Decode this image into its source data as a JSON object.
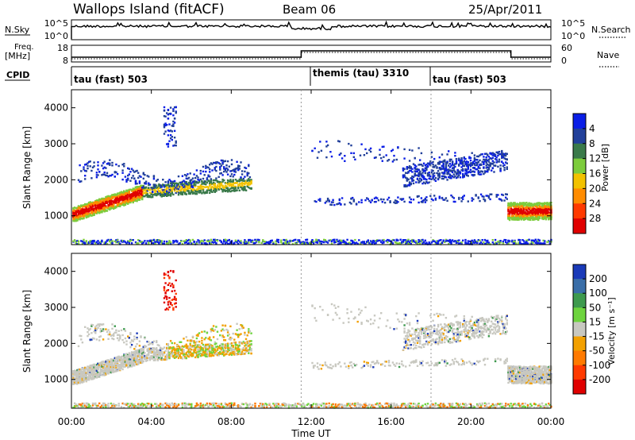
{
  "header": {
    "station": "Wallops Island (fitACF)",
    "beam": "Beam 06",
    "date": "25/Apr/2011"
  },
  "top_panels": {
    "nsky_label": "N.Sky",
    "nsky_ticks": [
      "10^5",
      "10^0"
    ],
    "nsearch_label": "N.Search",
    "nsearch_ticks": [
      "10^5",
      "10^0"
    ],
    "freq_label": "Freq.",
    "freq_unit": "[MHz]",
    "freq_ticks": [
      "18",
      "8"
    ],
    "nave_label": "Nave",
    "nave_ticks": [
      "60",
      "0"
    ],
    "cpid_label": "CPID",
    "cpid_segments": [
      {
        "start_h": 0,
        "end_h": 12,
        "label": "tau (fast) 503"
      },
      {
        "start_h": 12,
        "end_h": 18,
        "label": "themis (tau) 3310"
      },
      {
        "start_h": 18,
        "end_h": 24,
        "label": "tau (fast) 503"
      }
    ]
  },
  "chart_data": [
    {
      "type": "heatmap",
      "title": "",
      "ylabel": "Slant Range [km]",
      "xlabel": "Time UT",
      "ylim": [
        200,
        4500
      ],
      "yticks": [
        "1000",
        "2000",
        "3000",
        "4000"
      ],
      "x_ticks": [
        "00:00",
        "04:00",
        "08:00",
        "12:00",
        "16:00",
        "20:00",
        "00:00"
      ],
      "colorbar": {
        "label": "Power [dB]",
        "ticks": [
          "4",
          "8",
          "12",
          "16",
          "20",
          "24",
          "28"
        ],
        "colors": [
          "#0a1ee6",
          "#22409a",
          "#3a7a4a",
          "#7dcc3c",
          "#f2c200",
          "#ff8c00",
          "#ff3a00",
          "#e00000"
        ]
      }
    },
    {
      "type": "heatmap",
      "title": "",
      "ylabel": "Slant Range [km]",
      "xlabel": "Time UT",
      "ylim": [
        200,
        4500
      ],
      "yticks": [
        "1000",
        "2000",
        "3000",
        "4000"
      ],
      "x_ticks": [
        "00:00",
        "04:00",
        "08:00",
        "12:00",
        "16:00",
        "20:00",
        "00:00"
      ],
      "colorbar": {
        "label": "Velocity [m s⁻¹]",
        "ticks": [
          "200",
          "100",
          "50",
          "15",
          "-15",
          "-50",
          "-100",
          "-200"
        ],
        "colors": [
          "#1a3ab8",
          "#3a6ea8",
          "#3e9a4e",
          "#6ed43e",
          "#c8c8c0",
          "#f2a000",
          "#ff7a00",
          "#ff3a00",
          "#e00000"
        ]
      }
    }
  ],
  "x_axis": {
    "ticks": [
      "00:00",
      "04:00",
      "08:00",
      "12:00",
      "16:00",
      "20:00",
      "00:00"
    ],
    "label": "Time UT"
  }
}
